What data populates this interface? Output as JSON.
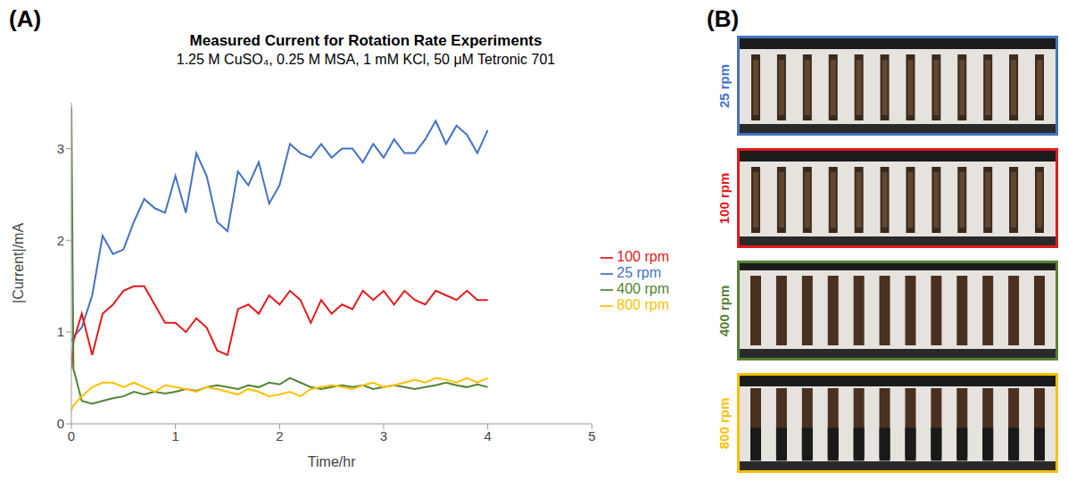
{
  "chart_data": {
    "type": "line",
    "panel_label": "(A)",
    "title": "Measured Current for Rotation Rate Experiments",
    "subtitle": "1.25 M CuSO₄, 0.25 M MSA, 1 mM KCl, 50 μM Tetronic 701",
    "x_label": "Time/hr",
    "y_label": "|Current|/mA",
    "x": [
      0,
      0.02,
      0.1,
      0.2,
      0.3,
      0.4,
      0.5,
      0.6,
      0.7,
      0.8,
      0.9,
      1.0,
      1.1,
      1.2,
      1.3,
      1.4,
      1.5,
      1.6,
      1.7,
      1.8,
      1.9,
      2.0,
      2.1,
      2.2,
      2.3,
      2.4,
      2.5,
      2.6,
      2.7,
      2.8,
      2.9,
      3.0,
      3.1,
      3.2,
      3.3,
      3.4,
      3.5,
      3.6,
      3.7,
      3.8,
      3.9,
      4.0
    ],
    "series": [
      {
        "name": "25 rpm",
        "color": "#4472c4",
        "values": [
          0.9,
          0.95,
          1.05,
          1.4,
          2.05,
          1.85,
          1.9,
          2.2,
          2.45,
          2.35,
          2.3,
          2.7,
          2.3,
          2.95,
          2.7,
          2.2,
          2.1,
          2.75,
          2.6,
          2.85,
          2.4,
          2.6,
          3.05,
          2.95,
          2.9,
          3.05,
          2.9,
          3.0,
          3.0,
          2.85,
          3.05,
          2.9,
          3.1,
          2.95,
          2.95,
          3.1,
          3.3,
          3.05,
          3.25,
          3.15,
          2.95,
          3.2
        ]
      },
      {
        "name": "100 rpm",
        "color": "#e31a1c",
        "values": [
          0.6,
          0.9,
          1.2,
          0.75,
          1.2,
          1.3,
          1.45,
          1.5,
          1.5,
          1.3,
          1.1,
          1.1,
          1.0,
          1.15,
          1.05,
          0.8,
          0.75,
          1.25,
          1.3,
          1.2,
          1.4,
          1.3,
          1.45,
          1.35,
          1.1,
          1.35,
          1.2,
          1.3,
          1.25,
          1.45,
          1.35,
          1.45,
          1.3,
          1.45,
          1.35,
          1.3,
          1.45,
          1.4,
          1.35,
          1.45,
          1.35,
          1.35
        ]
      },
      {
        "name": "400 rpm",
        "color": "#548235",
        "values": [
          3.45,
          0.6,
          0.25,
          0.22,
          0.25,
          0.28,
          0.3,
          0.35,
          0.32,
          0.35,
          0.33,
          0.35,
          0.38,
          0.36,
          0.4,
          0.42,
          0.4,
          0.38,
          0.42,
          0.4,
          0.45,
          0.43,
          0.5,
          0.45,
          0.4,
          0.38,
          0.4,
          0.42,
          0.4,
          0.42,
          0.38,
          0.4,
          0.42,
          0.4,
          0.38,
          0.4,
          0.42,
          0.45,
          0.42,
          0.4,
          0.43,
          0.4
        ]
      },
      {
        "name": "800 rpm",
        "color": "#ffc000",
        "values": [
          0.15,
          0.2,
          0.3,
          0.4,
          0.45,
          0.45,
          0.4,
          0.45,
          0.4,
          0.35,
          0.42,
          0.4,
          0.38,
          0.35,
          0.4,
          0.38,
          0.35,
          0.32,
          0.38,
          0.35,
          0.3,
          0.32,
          0.35,
          0.3,
          0.38,
          0.4,
          0.42,
          0.4,
          0.38,
          0.42,
          0.45,
          0.4,
          0.42,
          0.45,
          0.48,
          0.45,
          0.5,
          0.48,
          0.45,
          0.5,
          0.45,
          0.5
        ]
      }
    ],
    "xlim": [
      0,
      5
    ],
    "xticks": [
      0,
      1,
      2,
      3,
      4,
      5
    ],
    "ylim": [
      0,
      3.5
    ],
    "yticks": [
      0,
      1,
      2,
      3
    ],
    "grid": false,
    "legend": "right"
  },
  "panel_b": {
    "label": "(B)",
    "images": [
      {
        "label": "25 rpm",
        "color": "#4472c4"
      },
      {
        "label": "100 rpm",
        "color": "#e31a1c"
      },
      {
        "label": "400 rpm",
        "color": "#548235"
      },
      {
        "label": "800 rpm",
        "color": "#ffc000"
      }
    ]
  }
}
